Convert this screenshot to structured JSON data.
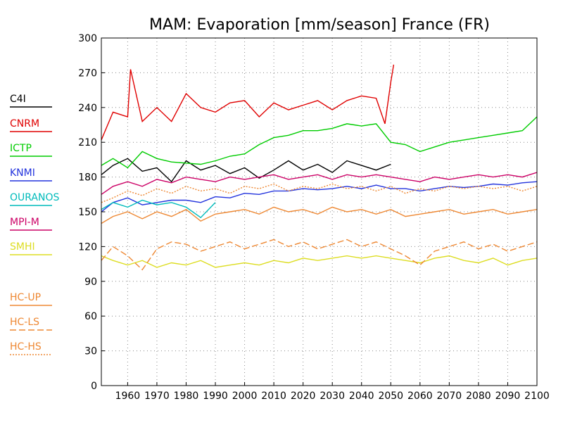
{
  "chart_data": {
    "type": "line",
    "title": "MAM: Evaporation [mm/season] France (FR)",
    "xlim": [
      1951,
      2100
    ],
    "ylim": [
      0,
      300
    ],
    "x_ticks": [
      1960,
      1970,
      1980,
      1990,
      2000,
      2010,
      2020,
      2030,
      2040,
      2050,
      2060,
      2070,
      2080,
      2090,
      2100
    ],
    "y_ticks": [
      0,
      30,
      60,
      90,
      120,
      150,
      180,
      210,
      240,
      270,
      300
    ],
    "grid": true,
    "legend_placement": "left",
    "series": [
      {
        "name": "C4I",
        "color": "#000000",
        "dash": "solid",
        "x": [
          1951,
          1955,
          1960,
          1965,
          1970,
          1975,
          1980,
          1985,
          1990,
          1995,
          2000,
          2005,
          2010,
          2015,
          2020,
          2025,
          2030,
          2035,
          2040,
          2045,
          2050
        ],
        "y": [
          182,
          190,
          196,
          185,
          188,
          176,
          194,
          186,
          190,
          183,
          188,
          179,
          186,
          194,
          186,
          191,
          184,
          194,
          190,
          186,
          191
        ]
      },
      {
        "name": "CNRM",
        "color": "#e00000",
        "dash": "solid",
        "x": [
          1951,
          1955,
          1960,
          1961,
          1965,
          1970,
          1975,
          1980,
          1985,
          1990,
          1995,
          2000,
          2005,
          2010,
          2015,
          2020,
          2025,
          2030,
          2035,
          2040,
          2045,
          2048,
          2050,
          2051
        ],
        "y": [
          212,
          236,
          232,
          273,
          228,
          240,
          228,
          252,
          240,
          236,
          244,
          246,
          232,
          244,
          238,
          242,
          246,
          238,
          246,
          250,
          248,
          226,
          262,
          277
        ]
      },
      {
        "name": "ICTP",
        "color": "#00cc00",
        "dash": "solid",
        "x": [
          1951,
          1955,
          1960,
          1965,
          1970,
          1975,
          1980,
          1985,
          1990,
          1995,
          2000,
          2005,
          2010,
          2015,
          2020,
          2025,
          2030,
          2035,
          2040,
          2045,
          2050,
          2055,
          2060,
          2065,
          2070,
          2075,
          2080,
          2085,
          2090,
          2095,
          2100
        ],
        "y": [
          190,
          196,
          188,
          202,
          196,
          193,
          192,
          191,
          194,
          198,
          200,
          208,
          214,
          216,
          220,
          220,
          222,
          226,
          224,
          226,
          210,
          208,
          202,
          206,
          210,
          212,
          214,
          216,
          218,
          220,
          232
        ]
      },
      {
        "name": "KNMI",
        "color": "#2233dd",
        "dash": "solid",
        "x": [
          1951,
          1955,
          1960,
          1965,
          1970,
          1975,
          1980,
          1985,
          1990,
          1995,
          2000,
          2005,
          2010,
          2015,
          2020,
          2025,
          2030,
          2035,
          2040,
          2045,
          2050,
          2055,
          2060,
          2065,
          2070,
          2075,
          2080,
          2085,
          2090,
          2095,
          2100
        ],
        "y": [
          150,
          158,
          162,
          156,
          158,
          160,
          160,
          158,
          163,
          162,
          166,
          165,
          168,
          168,
          170,
          169,
          170,
          172,
          170,
          173,
          170,
          170,
          168,
          170,
          172,
          171,
          172,
          174,
          173,
          175,
          176
        ]
      },
      {
        "name": "OURANOS",
        "color": "#00bbbb",
        "dash": "solid",
        "x": [
          1951,
          1955,
          1960,
          1965,
          1970,
          1975,
          1980,
          1985,
          1990
        ],
        "y": [
          152,
          158,
          154,
          160,
          156,
          158,
          154,
          145,
          158
        ]
      },
      {
        "name": "MPI-M",
        "color": "#cc0066",
        "dash": "solid",
        "x": [
          1951,
          1955,
          1960,
          1965,
          1970,
          1975,
          1980,
          1985,
          1990,
          1995,
          2000,
          2005,
          2010,
          2015,
          2020,
          2025,
          2030,
          2035,
          2040,
          2045,
          2050,
          2055,
          2060,
          2065,
          2070,
          2075,
          2080,
          2085,
          2090,
          2095,
          2100
        ],
        "y": [
          165,
          172,
          176,
          172,
          178,
          175,
          180,
          178,
          176,
          180,
          178,
          180,
          182,
          178,
          180,
          182,
          178,
          182,
          180,
          182,
          180,
          178,
          176,
          180,
          178,
          180,
          182,
          180,
          182,
          180,
          184
        ]
      },
      {
        "name": "SMHI",
        "color": "#dddd22",
        "dash": "solid",
        "x": [
          1951,
          1955,
          1960,
          1965,
          1970,
          1975,
          1980,
          1985,
          1990,
          1995,
          2000,
          2005,
          2010,
          2015,
          2020,
          2025,
          2030,
          2035,
          2040,
          2045,
          2050,
          2055,
          2060,
          2065,
          2070,
          2075,
          2080,
          2085,
          2090,
          2095,
          2100
        ],
        "y": [
          112,
          108,
          104,
          108,
          102,
          106,
          104,
          108,
          102,
          104,
          106,
          104,
          108,
          106,
          110,
          108,
          110,
          112,
          110,
          112,
          110,
          108,
          106,
          110,
          112,
          108,
          106,
          110,
          104,
          108,
          110
        ]
      },
      {
        "name": "HC-UP",
        "color": "#ee8833",
        "dash": "solid",
        "x": [
          1951,
          1955,
          1960,
          1965,
          1970,
          1975,
          1980,
          1985,
          1990,
          1995,
          2000,
          2005,
          2010,
          2015,
          2020,
          2025,
          2030,
          2035,
          2040,
          2045,
          2050,
          2055,
          2060,
          2065,
          2070,
          2075,
          2080,
          2085,
          2090,
          2095,
          2100
        ],
        "y": [
          140,
          146,
          150,
          144,
          150,
          146,
          152,
          142,
          148,
          150,
          152,
          148,
          154,
          150,
          152,
          148,
          154,
          150,
          152,
          148,
          152,
          146,
          148,
          150,
          152,
          148,
          150,
          152,
          148,
          150,
          152
        ]
      },
      {
        "name": "HC-LS",
        "color": "#ee8833",
        "dash": "longdash",
        "x": [
          1951,
          1955,
          1960,
          1965,
          1970,
          1975,
          1980,
          1985,
          1990,
          1995,
          2000,
          2005,
          2010,
          2015,
          2020,
          2025,
          2030,
          2035,
          2040,
          2045,
          2050,
          2055,
          2060,
          2065,
          2070,
          2075,
          2080,
          2085,
          2090,
          2095,
          2100
        ],
        "y": [
          108,
          120,
          112,
          100,
          118,
          124,
          122,
          116,
          120,
          124,
          118,
          122,
          126,
          120,
          124,
          118,
          122,
          126,
          120,
          124,
          118,
          112,
          104,
          116,
          120,
          124,
          118,
          122,
          116,
          120,
          124
        ]
      },
      {
        "name": "HC-HS",
        "color": "#ee8833",
        "dash": "dotted",
        "x": [
          1951,
          1955,
          1960,
          1965,
          1970,
          1975,
          1980,
          1985,
          1990,
          1995,
          2000,
          2005,
          2010,
          2015,
          2020,
          2025,
          2030,
          2035,
          2040,
          2045,
          2050,
          2055,
          2060,
          2065,
          2070,
          2075,
          2080,
          2085,
          2090,
          2095,
          2100
        ],
        "y": [
          158,
          162,
          168,
          164,
          170,
          166,
          172,
          168,
          170,
          166,
          172,
          170,
          174,
          168,
          172,
          170,
          174,
          170,
          172,
          168,
          172,
          166,
          170,
          168,
          172,
          170,
          172,
          170,
          172,
          168,
          172
        ]
      }
    ]
  }
}
